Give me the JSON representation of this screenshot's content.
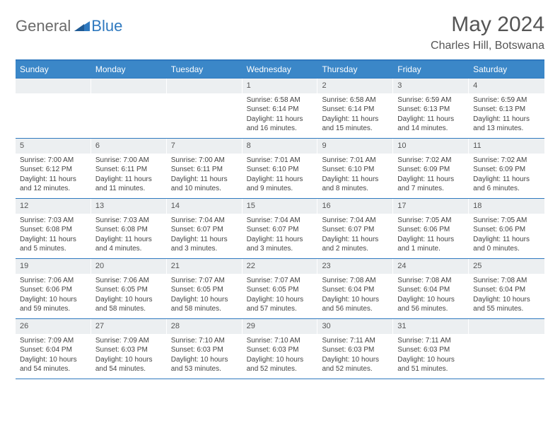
{
  "logo": {
    "general": "General",
    "blue": "Blue"
  },
  "title": "May 2024",
  "location": "Charles Hill, Botswana",
  "colors": {
    "accent": "#2f79bf",
    "header_bg": "#3b87c8",
    "daynum_bg": "#eceff1",
    "text": "#444444",
    "title_text": "#555555"
  },
  "day_headers": [
    "Sunday",
    "Monday",
    "Tuesday",
    "Wednesday",
    "Thursday",
    "Friday",
    "Saturday"
  ],
  "weeks": [
    [
      {
        "num": "",
        "sunrise": "",
        "sunset": "",
        "daylight": ""
      },
      {
        "num": "",
        "sunrise": "",
        "sunset": "",
        "daylight": ""
      },
      {
        "num": "",
        "sunrise": "",
        "sunset": "",
        "daylight": ""
      },
      {
        "num": "1",
        "sunrise": "Sunrise: 6:58 AM",
        "sunset": "Sunset: 6:14 PM",
        "daylight": "Daylight: 11 hours and 16 minutes."
      },
      {
        "num": "2",
        "sunrise": "Sunrise: 6:58 AM",
        "sunset": "Sunset: 6:14 PM",
        "daylight": "Daylight: 11 hours and 15 minutes."
      },
      {
        "num": "3",
        "sunrise": "Sunrise: 6:59 AM",
        "sunset": "Sunset: 6:13 PM",
        "daylight": "Daylight: 11 hours and 14 minutes."
      },
      {
        "num": "4",
        "sunrise": "Sunrise: 6:59 AM",
        "sunset": "Sunset: 6:13 PM",
        "daylight": "Daylight: 11 hours and 13 minutes."
      }
    ],
    [
      {
        "num": "5",
        "sunrise": "Sunrise: 7:00 AM",
        "sunset": "Sunset: 6:12 PM",
        "daylight": "Daylight: 11 hours and 12 minutes."
      },
      {
        "num": "6",
        "sunrise": "Sunrise: 7:00 AM",
        "sunset": "Sunset: 6:11 PM",
        "daylight": "Daylight: 11 hours and 11 minutes."
      },
      {
        "num": "7",
        "sunrise": "Sunrise: 7:00 AM",
        "sunset": "Sunset: 6:11 PM",
        "daylight": "Daylight: 11 hours and 10 minutes."
      },
      {
        "num": "8",
        "sunrise": "Sunrise: 7:01 AM",
        "sunset": "Sunset: 6:10 PM",
        "daylight": "Daylight: 11 hours and 9 minutes."
      },
      {
        "num": "9",
        "sunrise": "Sunrise: 7:01 AM",
        "sunset": "Sunset: 6:10 PM",
        "daylight": "Daylight: 11 hours and 8 minutes."
      },
      {
        "num": "10",
        "sunrise": "Sunrise: 7:02 AM",
        "sunset": "Sunset: 6:09 PM",
        "daylight": "Daylight: 11 hours and 7 minutes."
      },
      {
        "num": "11",
        "sunrise": "Sunrise: 7:02 AM",
        "sunset": "Sunset: 6:09 PM",
        "daylight": "Daylight: 11 hours and 6 minutes."
      }
    ],
    [
      {
        "num": "12",
        "sunrise": "Sunrise: 7:03 AM",
        "sunset": "Sunset: 6:08 PM",
        "daylight": "Daylight: 11 hours and 5 minutes."
      },
      {
        "num": "13",
        "sunrise": "Sunrise: 7:03 AM",
        "sunset": "Sunset: 6:08 PM",
        "daylight": "Daylight: 11 hours and 4 minutes."
      },
      {
        "num": "14",
        "sunrise": "Sunrise: 7:04 AM",
        "sunset": "Sunset: 6:07 PM",
        "daylight": "Daylight: 11 hours and 3 minutes."
      },
      {
        "num": "15",
        "sunrise": "Sunrise: 7:04 AM",
        "sunset": "Sunset: 6:07 PM",
        "daylight": "Daylight: 11 hours and 3 minutes."
      },
      {
        "num": "16",
        "sunrise": "Sunrise: 7:04 AM",
        "sunset": "Sunset: 6:07 PM",
        "daylight": "Daylight: 11 hours and 2 minutes."
      },
      {
        "num": "17",
        "sunrise": "Sunrise: 7:05 AM",
        "sunset": "Sunset: 6:06 PM",
        "daylight": "Daylight: 11 hours and 1 minute."
      },
      {
        "num": "18",
        "sunrise": "Sunrise: 7:05 AM",
        "sunset": "Sunset: 6:06 PM",
        "daylight": "Daylight: 11 hours and 0 minutes."
      }
    ],
    [
      {
        "num": "19",
        "sunrise": "Sunrise: 7:06 AM",
        "sunset": "Sunset: 6:06 PM",
        "daylight": "Daylight: 10 hours and 59 minutes."
      },
      {
        "num": "20",
        "sunrise": "Sunrise: 7:06 AM",
        "sunset": "Sunset: 6:05 PM",
        "daylight": "Daylight: 10 hours and 58 minutes."
      },
      {
        "num": "21",
        "sunrise": "Sunrise: 7:07 AM",
        "sunset": "Sunset: 6:05 PM",
        "daylight": "Daylight: 10 hours and 58 minutes."
      },
      {
        "num": "22",
        "sunrise": "Sunrise: 7:07 AM",
        "sunset": "Sunset: 6:05 PM",
        "daylight": "Daylight: 10 hours and 57 minutes."
      },
      {
        "num": "23",
        "sunrise": "Sunrise: 7:08 AM",
        "sunset": "Sunset: 6:04 PM",
        "daylight": "Daylight: 10 hours and 56 minutes."
      },
      {
        "num": "24",
        "sunrise": "Sunrise: 7:08 AM",
        "sunset": "Sunset: 6:04 PM",
        "daylight": "Daylight: 10 hours and 56 minutes."
      },
      {
        "num": "25",
        "sunrise": "Sunrise: 7:08 AM",
        "sunset": "Sunset: 6:04 PM",
        "daylight": "Daylight: 10 hours and 55 minutes."
      }
    ],
    [
      {
        "num": "26",
        "sunrise": "Sunrise: 7:09 AM",
        "sunset": "Sunset: 6:04 PM",
        "daylight": "Daylight: 10 hours and 54 minutes."
      },
      {
        "num": "27",
        "sunrise": "Sunrise: 7:09 AM",
        "sunset": "Sunset: 6:03 PM",
        "daylight": "Daylight: 10 hours and 54 minutes."
      },
      {
        "num": "28",
        "sunrise": "Sunrise: 7:10 AM",
        "sunset": "Sunset: 6:03 PM",
        "daylight": "Daylight: 10 hours and 53 minutes."
      },
      {
        "num": "29",
        "sunrise": "Sunrise: 7:10 AM",
        "sunset": "Sunset: 6:03 PM",
        "daylight": "Daylight: 10 hours and 52 minutes."
      },
      {
        "num": "30",
        "sunrise": "Sunrise: 7:11 AM",
        "sunset": "Sunset: 6:03 PM",
        "daylight": "Daylight: 10 hours and 52 minutes."
      },
      {
        "num": "31",
        "sunrise": "Sunrise: 7:11 AM",
        "sunset": "Sunset: 6:03 PM",
        "daylight": "Daylight: 10 hours and 51 minutes."
      },
      {
        "num": "",
        "sunrise": "",
        "sunset": "",
        "daylight": ""
      }
    ]
  ]
}
